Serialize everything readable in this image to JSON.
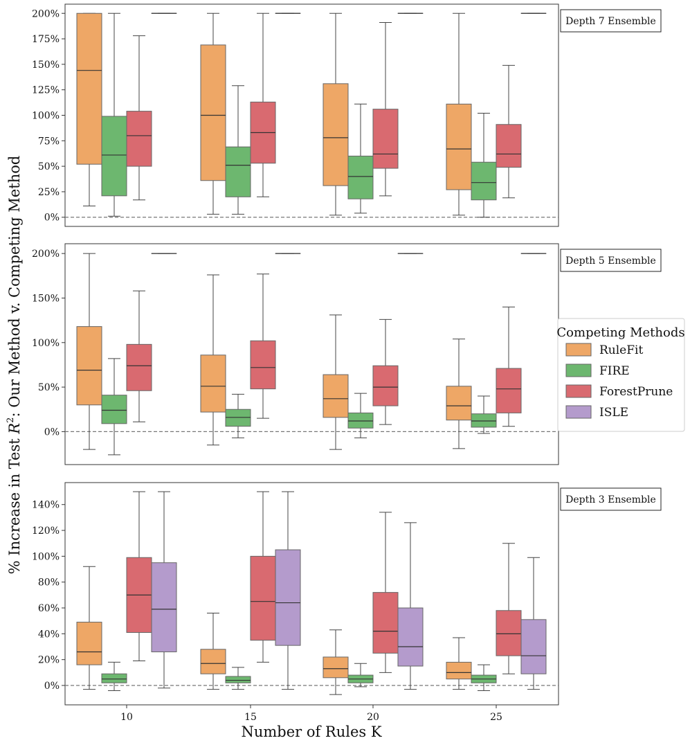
{
  "chart_data": {
    "type": "box",
    "xlabel": "Number of Rules K",
    "ylabel_prefix": "% Increase in Test ",
    "ylabel_var": "R",
    "ylabel_sup": "2",
    "ylabel_suffix": ": Our Method v. Competing Method",
    "categories": [
      "10",
      "15",
      "20",
      "25"
    ],
    "legend": {
      "title": "Competing Methods",
      "placement": "right",
      "entries": [
        {
          "name": "RuleFit",
          "color": "#eea766"
        },
        {
          "name": "FIRE",
          "color": "#6db76f"
        },
        {
          "name": "ForestPrune",
          "color": "#d96a70"
        },
        {
          "name": "ISLE",
          "color": "#b49bcc"
        }
      ]
    },
    "panels": [
      {
        "label": "Depth 7 Ensemble",
        "ylim": [
          -9,
          209
        ],
        "ticks": [
          0,
          25,
          50,
          75,
          100,
          125,
          150,
          175,
          200
        ],
        "tick_labels": [
          "0%",
          "25%",
          "50%",
          "75%",
          "100%",
          "125%",
          "150%",
          "175%",
          "200%"
        ],
        "reference": 0,
        "boxes": [
          {
            "k": "10",
            "method": "RuleFit",
            "stats": [
              11,
              52,
              144,
              200,
              200
            ]
          },
          {
            "k": "10",
            "method": "FIRE",
            "stats": [
              1,
              21,
              61,
              99,
              200
            ]
          },
          {
            "k": "10",
            "method": "ForestPrune",
            "stats": [
              17,
              50,
              80,
              104,
              178
            ]
          },
          {
            "k": "10",
            "method": "ISLE",
            "stats": [
              200,
              200,
              200,
              200,
              200
            ]
          },
          {
            "k": "15",
            "method": "RuleFit",
            "stats": [
              3,
              36,
              100,
              169,
              200
            ]
          },
          {
            "k": "15",
            "method": "FIRE",
            "stats": [
              3,
              20,
              51,
              69,
              129
            ]
          },
          {
            "k": "15",
            "method": "ForestPrune",
            "stats": [
              20,
              53,
              83,
              113,
              200
            ]
          },
          {
            "k": "15",
            "method": "ISLE",
            "stats": [
              200,
              200,
              200,
              200,
              200
            ]
          },
          {
            "k": "20",
            "method": "RuleFit",
            "stats": [
              2,
              31,
              78,
              131,
              200
            ]
          },
          {
            "k": "20",
            "method": "FIRE",
            "stats": [
              4,
              18,
              40,
              60,
              111
            ]
          },
          {
            "k": "20",
            "method": "ForestPrune",
            "stats": [
              21,
              48,
              62,
              106,
              191
            ]
          },
          {
            "k": "20",
            "method": "ISLE",
            "stats": [
              200,
              200,
              200,
              200,
              200
            ]
          },
          {
            "k": "25",
            "method": "RuleFit",
            "stats": [
              2,
              27,
              67,
              111,
              200
            ]
          },
          {
            "k": "25",
            "method": "FIRE",
            "stats": [
              0,
              17,
              34,
              54,
              102
            ]
          },
          {
            "k": "25",
            "method": "ForestPrune",
            "stats": [
              19,
              49,
              62,
              91,
              149
            ]
          },
          {
            "k": "25",
            "method": "ISLE",
            "stats": [
              200,
              200,
              200,
              200,
              200
            ]
          }
        ]
      },
      {
        "label": "Depth 5 Ensemble",
        "ylim": [
          -37,
          211
        ],
        "ticks": [
          0,
          50,
          100,
          150,
          200
        ],
        "tick_labels": [
          "0%",
          "50%",
          "100%",
          "150%",
          "200%"
        ],
        "reference": 0,
        "boxes": [
          {
            "k": "10",
            "method": "RuleFit",
            "stats": [
              -20,
              30,
              69,
              118,
              200
            ]
          },
          {
            "k": "10",
            "method": "FIRE",
            "stats": [
              -26,
              9,
              24,
              41,
              82
            ]
          },
          {
            "k": "10",
            "method": "ForestPrune",
            "stats": [
              11,
              46,
              74,
              98,
              158
            ]
          },
          {
            "k": "10",
            "method": "ISLE",
            "stats": [
              200,
              200,
              200,
              200,
              200
            ]
          },
          {
            "k": "15",
            "method": "RuleFit",
            "stats": [
              -15,
              22,
              51,
              86,
              176
            ]
          },
          {
            "k": "15",
            "method": "FIRE",
            "stats": [
              -7,
              6,
              16,
              25,
              42
            ]
          },
          {
            "k": "15",
            "method": "ForestPrune",
            "stats": [
              15,
              48,
              72,
              102,
              177
            ]
          },
          {
            "k": "15",
            "method": "ISLE",
            "stats": [
              200,
              200,
              200,
              200,
              200
            ]
          },
          {
            "k": "20",
            "method": "RuleFit",
            "stats": [
              -20,
              16,
              37,
              64,
              131
            ]
          },
          {
            "k": "20",
            "method": "FIRE",
            "stats": [
              -7,
              4,
              12,
              21,
              43
            ]
          },
          {
            "k": "20",
            "method": "ForestPrune",
            "stats": [
              8,
              29,
              50,
              74,
              126
            ]
          },
          {
            "k": "20",
            "method": "ISLE",
            "stats": [
              200,
              200,
              200,
              200,
              200
            ]
          },
          {
            "k": "25",
            "method": "RuleFit",
            "stats": [
              -19,
              13,
              29,
              51,
              104
            ]
          },
          {
            "k": "25",
            "method": "FIRE",
            "stats": [
              -2,
              5,
              12,
              20,
              40
            ]
          },
          {
            "k": "25",
            "method": "ForestPrune",
            "stats": [
              6,
              21,
              48,
              71,
              140
            ]
          },
          {
            "k": "25",
            "method": "ISLE",
            "stats": [
              200,
              200,
              200,
              200,
              200
            ]
          }
        ]
      },
      {
        "label": "Depth 3 Ensemble",
        "ylim": [
          -15,
          157
        ],
        "ticks": [
          0,
          20,
          40,
          60,
          80,
          100,
          120,
          140
        ],
        "tick_labels": [
          "0%",
          "20%",
          "40%",
          "60%",
          "80%",
          "100%",
          "120%",
          "140%"
        ],
        "reference": 0,
        "boxes": [
          {
            "k": "10",
            "method": "RuleFit",
            "stats": [
              -3,
              16,
              26,
              49,
              92
            ]
          },
          {
            "k": "10",
            "method": "FIRE",
            "stats": [
              -4,
              2,
              5,
              9,
              18
            ]
          },
          {
            "k": "10",
            "method": "ForestPrune",
            "stats": [
              19,
              41,
              70,
              99,
              150
            ]
          },
          {
            "k": "10",
            "method": "ISLE",
            "stats": [
              -2,
              26,
              59,
              95,
              150
            ]
          },
          {
            "k": "15",
            "method": "RuleFit",
            "stats": [
              -3,
              9,
              17,
              28,
              56
            ]
          },
          {
            "k": "15",
            "method": "FIRE",
            "stats": [
              -3,
              2,
              4,
              7,
              14
            ]
          },
          {
            "k": "15",
            "method": "ForestPrune",
            "stats": [
              18,
              35,
              65,
              100,
              150
            ]
          },
          {
            "k": "15",
            "method": "ISLE",
            "stats": [
              -3,
              31,
              64,
              105,
              150
            ]
          },
          {
            "k": "20",
            "method": "RuleFit",
            "stats": [
              -7,
              6,
              13,
              22,
              43
            ]
          },
          {
            "k": "20",
            "method": "FIRE",
            "stats": [
              -1,
              2,
              5,
              8,
              17
            ]
          },
          {
            "k": "20",
            "method": "ForestPrune",
            "stats": [
              10,
              25,
              42,
              72,
              134
            ]
          },
          {
            "k": "20",
            "method": "ISLE",
            "stats": [
              -3,
              15,
              30,
              60,
              126
            ]
          },
          {
            "k": "25",
            "method": "RuleFit",
            "stats": [
              -3,
              5,
              10,
              18,
              37
            ]
          },
          {
            "k": "25",
            "method": "FIRE",
            "stats": [
              -4,
              2,
              5,
              8,
              16
            ]
          },
          {
            "k": "25",
            "method": "ForestPrune",
            "stats": [
              9,
              23,
              40,
              58,
              110
            ]
          },
          {
            "k": "25",
            "method": "ISLE",
            "stats": [
              -3,
              9,
              23,
              51,
              99
            ]
          }
        ]
      }
    ]
  }
}
